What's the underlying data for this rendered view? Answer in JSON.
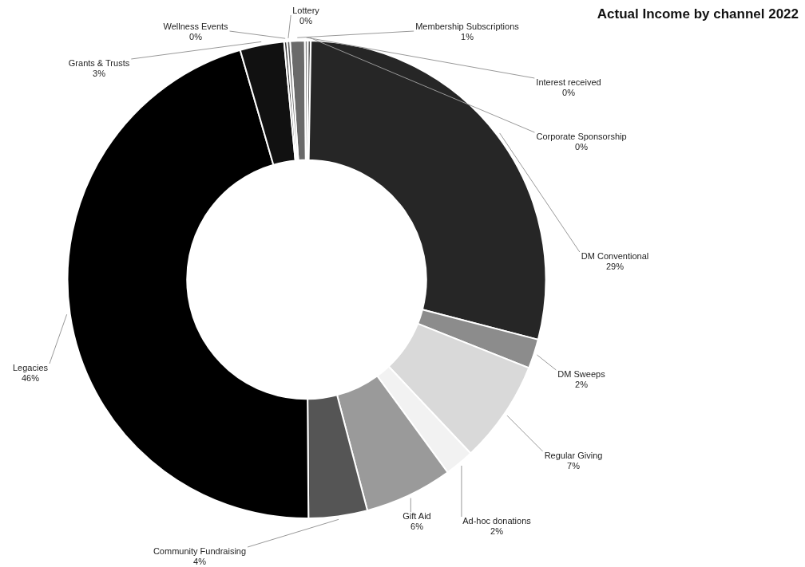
{
  "chart_data": {
    "type": "donut",
    "title": "Actual Income by channel 2022",
    "categories": [
      "Membership Subscriptions",
      "Interest received",
      "Corporate Sponsorship",
      "DM Conventional",
      "DM Sweeps",
      "Regular Giving",
      "Ad-hoc donations",
      "Gift Aid",
      "Community Fundraising",
      "Legacies",
      "Grants & Trusts",
      "Wellness Events",
      "Lottery"
    ],
    "values": [
      1,
      0.2,
      0.2,
      29,
      2,
      7,
      2,
      6,
      4,
      46,
      3,
      0.2,
      0.2
    ],
    "value_labels": [
      "1%",
      "0%",
      "0%",
      "29%",
      "2%",
      "7%",
      "2%",
      "6%",
      "4%",
      "46%",
      "3%",
      "0%",
      "0%"
    ],
    "colors": [
      "#6a6a6a",
      "#8a8a8a",
      "#5a5a5a",
      "#262626",
      "#8c8c8c",
      "#d9d9d9",
      "#f2f2f2",
      "#9a9a9a",
      "#555555",
      "#000000",
      "#111111",
      "#444444",
      "#666666"
    ],
    "legend": false
  }
}
